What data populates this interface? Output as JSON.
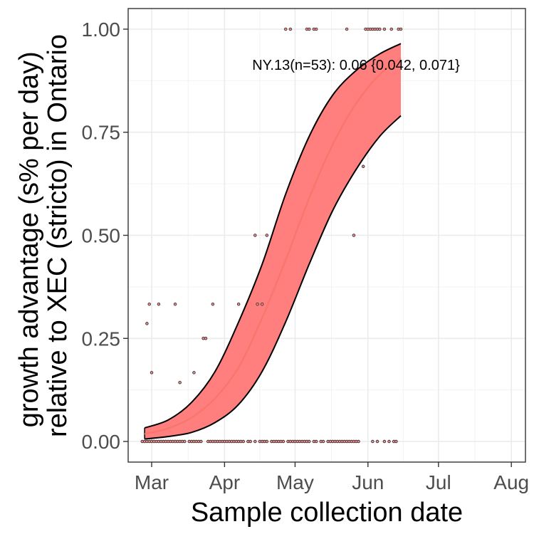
{
  "chart_data": {
    "type": "line",
    "title": "",
    "xlabel": "Sample collection date",
    "ylabel": "growth advantage (s% per day)\nrelative to XEC (stricto) in Ontario",
    "ylabel_lines": [
      "growth advantage (s% per day)",
      "relative to XEC (stricto) in Ontario"
    ],
    "xlim": [
      "2025-02-19",
      "2025-08-07"
    ],
    "ylim": [
      -0.05,
      1.05
    ],
    "x_ticks": [
      {
        "date": "2025-03-01",
        "label": "Mar"
      },
      {
        "date": "2025-04-01",
        "label": "Apr"
      },
      {
        "date": "2025-05-01",
        "label": "May"
      },
      {
        "date": "2025-06-01",
        "label": "Jun"
      },
      {
        "date": "2025-07-01",
        "label": "Jul"
      },
      {
        "date": "2025-08-01",
        "label": "Aug"
      }
    ],
    "y_ticks": [
      {
        "value": 0.0,
        "label": "0.00"
      },
      {
        "value": 0.25,
        "label": "0.25"
      },
      {
        "value": 0.5,
        "label": "0.50"
      },
      {
        "value": 0.75,
        "label": "0.75"
      },
      {
        "value": 1.0,
        "label": "1.00"
      }
    ],
    "grid": true,
    "annotation": "NY.13(n=53): 0.06 {0.042, 0.071}",
    "fit_color": "#f8766d",
    "ribbon_color": "#ff7f7f",
    "fit": {
      "x": [
        "2025-02-26",
        "2025-03-08",
        "2025-03-18",
        "2025-03-28",
        "2025-04-07",
        "2025-04-17",
        "2025-04-27",
        "2025-05-07",
        "2025-05-17",
        "2025-05-27",
        "2025-06-06",
        "2025-06-15"
      ],
      "y": [
        0.018,
        0.032,
        0.058,
        0.105,
        0.18,
        0.3,
        0.44,
        0.59,
        0.72,
        0.82,
        0.89,
        0.93
      ],
      "lower": [
        0.006,
        0.012,
        0.022,
        0.046,
        0.09,
        0.17,
        0.29,
        0.43,
        0.56,
        0.66,
        0.74,
        0.79
      ],
      "upper": [
        0.033,
        0.052,
        0.095,
        0.17,
        0.29,
        0.43,
        0.6,
        0.74,
        0.84,
        0.9,
        0.94,
        0.965
      ]
    },
    "points": [
      {
        "x": "2025-02-28",
        "y": 0.333
      },
      {
        "x": "2025-03-04",
        "y": 0.333
      },
      {
        "x": "2025-03-11",
        "y": 0.333
      },
      {
        "x": "2025-03-27",
        "y": 0.333
      },
      {
        "x": "2025-04-07",
        "y": 0.333
      },
      {
        "x": "2025-04-15",
        "y": 0.333
      },
      {
        "x": "2025-04-17",
        "y": 0.333
      },
      {
        "x": "2025-02-27",
        "y": 0.286
      },
      {
        "x": "2025-03-23",
        "y": 0.25
      },
      {
        "x": "2025-03-24",
        "y": 0.25
      },
      {
        "x": "2025-03-01",
        "y": 0.167
      },
      {
        "x": "2025-03-19",
        "y": 0.167
      },
      {
        "x": "2025-03-13",
        "y": 0.143
      },
      {
        "x": "2025-04-14",
        "y": 0.5
      },
      {
        "x": "2025-04-19",
        "y": 0.5
      },
      {
        "x": "2025-05-26",
        "y": 0.5
      },
      {
        "x": "2025-05-30",
        "y": 0.667
      },
      {
        "x": "2025-04-27",
        "y": 1.0
      },
      {
        "x": "2025-04-29",
        "y": 1.0
      },
      {
        "x": "2025-05-06",
        "y": 1.0
      },
      {
        "x": "2025-05-07",
        "y": 1.0
      },
      {
        "x": "2025-05-09",
        "y": 1.0
      },
      {
        "x": "2025-05-10",
        "y": 1.0
      },
      {
        "x": "2025-05-23",
        "y": 1.0
      },
      {
        "x": "2025-05-31",
        "y": 1.0
      },
      {
        "x": "2025-06-01",
        "y": 1.0
      },
      {
        "x": "2025-06-02",
        "y": 1.0
      },
      {
        "x": "2025-06-03",
        "y": 1.0
      },
      {
        "x": "2025-06-04",
        "y": 1.0
      },
      {
        "x": "2025-06-05",
        "y": 1.0
      },
      {
        "x": "2025-06-06",
        "y": 1.0
      },
      {
        "x": "2025-06-08",
        "y": 1.0
      },
      {
        "x": "2025-06-11",
        "y": 1.0
      },
      {
        "x": "2025-06-14",
        "y": 1.0
      },
      {
        "x": "2025-06-15",
        "y": 1.0
      },
      {
        "x": "2025-02-25",
        "y": 0.0
      },
      {
        "x": "2025-02-26",
        "y": 0.0
      },
      {
        "x": "2025-02-27",
        "y": 0.0
      },
      {
        "x": "2025-02-28",
        "y": 0.0
      },
      {
        "x": "2025-03-01",
        "y": 0.0
      },
      {
        "x": "2025-03-02",
        "y": 0.0
      },
      {
        "x": "2025-03-03",
        "y": 0.0
      },
      {
        "x": "2025-03-04",
        "y": 0.0
      },
      {
        "x": "2025-03-05",
        "y": 0.0
      },
      {
        "x": "2025-03-06",
        "y": 0.0
      },
      {
        "x": "2025-03-07",
        "y": 0.0
      },
      {
        "x": "2025-03-08",
        "y": 0.0
      },
      {
        "x": "2025-03-09",
        "y": 0.0
      },
      {
        "x": "2025-03-10",
        "y": 0.0
      },
      {
        "x": "2025-03-11",
        "y": 0.0
      },
      {
        "x": "2025-03-12",
        "y": 0.0
      },
      {
        "x": "2025-03-13",
        "y": 0.0
      },
      {
        "x": "2025-03-14",
        "y": 0.0
      },
      {
        "x": "2025-03-15",
        "y": 0.0
      },
      {
        "x": "2025-03-17",
        "y": 0.0
      },
      {
        "x": "2025-03-18",
        "y": 0.0
      },
      {
        "x": "2025-03-19",
        "y": 0.0
      },
      {
        "x": "2025-03-20",
        "y": 0.0
      },
      {
        "x": "2025-03-21",
        "y": 0.0
      },
      {
        "x": "2025-03-22",
        "y": 0.0
      },
      {
        "x": "2025-03-25",
        "y": 0.0
      },
      {
        "x": "2025-03-26",
        "y": 0.0
      },
      {
        "x": "2025-03-27",
        "y": 0.0
      },
      {
        "x": "2025-03-28",
        "y": 0.0
      },
      {
        "x": "2025-03-29",
        "y": 0.0
      },
      {
        "x": "2025-03-30",
        "y": 0.0
      },
      {
        "x": "2025-03-31",
        "y": 0.0
      },
      {
        "x": "2025-04-01",
        "y": 0.0
      },
      {
        "x": "2025-04-02",
        "y": 0.0
      },
      {
        "x": "2025-04-03",
        "y": 0.0
      },
      {
        "x": "2025-04-04",
        "y": 0.0
      },
      {
        "x": "2025-04-05",
        "y": 0.0
      },
      {
        "x": "2025-04-06",
        "y": 0.0
      },
      {
        "x": "2025-04-07",
        "y": 0.0
      },
      {
        "x": "2025-04-08",
        "y": 0.0
      },
      {
        "x": "2025-04-09",
        "y": 0.0
      },
      {
        "x": "2025-04-11",
        "y": 0.0
      },
      {
        "x": "2025-04-12",
        "y": 0.0
      },
      {
        "x": "2025-04-14",
        "y": 0.0
      },
      {
        "x": "2025-04-16",
        "y": 0.0
      },
      {
        "x": "2025-04-17",
        "y": 0.0
      },
      {
        "x": "2025-04-18",
        "y": 0.0
      },
      {
        "x": "2025-04-19",
        "y": 0.0
      },
      {
        "x": "2025-04-21",
        "y": 0.0
      },
      {
        "x": "2025-04-22",
        "y": 0.0
      },
      {
        "x": "2025-04-23",
        "y": 0.0
      },
      {
        "x": "2025-04-24",
        "y": 0.0
      },
      {
        "x": "2025-04-25",
        "y": 0.0
      },
      {
        "x": "2025-04-26",
        "y": 0.0
      },
      {
        "x": "2025-04-28",
        "y": 0.0
      },
      {
        "x": "2025-04-29",
        "y": 0.0
      },
      {
        "x": "2025-04-30",
        "y": 0.0
      },
      {
        "x": "2025-05-01",
        "y": 0.0
      },
      {
        "x": "2025-05-02",
        "y": 0.0
      },
      {
        "x": "2025-05-03",
        "y": 0.0
      },
      {
        "x": "2025-05-04",
        "y": 0.0
      },
      {
        "x": "2025-05-05",
        "y": 0.0
      },
      {
        "x": "2025-05-06",
        "y": 0.0
      },
      {
        "x": "2025-05-07",
        "y": 0.0
      },
      {
        "x": "2025-05-09",
        "y": 0.0
      },
      {
        "x": "2025-05-10",
        "y": 0.0
      },
      {
        "x": "2025-05-12",
        "y": 0.0
      },
      {
        "x": "2025-05-13",
        "y": 0.0
      },
      {
        "x": "2025-05-15",
        "y": 0.0
      },
      {
        "x": "2025-05-16",
        "y": 0.0
      },
      {
        "x": "2025-05-17",
        "y": 0.0
      },
      {
        "x": "2025-05-18",
        "y": 0.0
      },
      {
        "x": "2025-05-19",
        "y": 0.0
      },
      {
        "x": "2025-05-20",
        "y": 0.0
      },
      {
        "x": "2025-05-21",
        "y": 0.0
      },
      {
        "x": "2025-05-22",
        "y": 0.0
      },
      {
        "x": "2025-05-23",
        "y": 0.0
      },
      {
        "x": "2025-05-24",
        "y": 0.0
      },
      {
        "x": "2025-05-25",
        "y": 0.0
      },
      {
        "x": "2025-05-26",
        "y": 0.0
      },
      {
        "x": "2025-05-27",
        "y": 0.0
      },
      {
        "x": "2025-05-28",
        "y": 0.0
      },
      {
        "x": "2025-06-03",
        "y": 0.0
      },
      {
        "x": "2025-06-05",
        "y": 0.0
      },
      {
        "x": "2025-06-08",
        "y": 0.0
      },
      {
        "x": "2025-06-10",
        "y": 0.0
      },
      {
        "x": "2025-06-12",
        "y": 0.0
      },
      {
        "x": "2025-06-13",
        "y": 0.0
      }
    ]
  }
}
